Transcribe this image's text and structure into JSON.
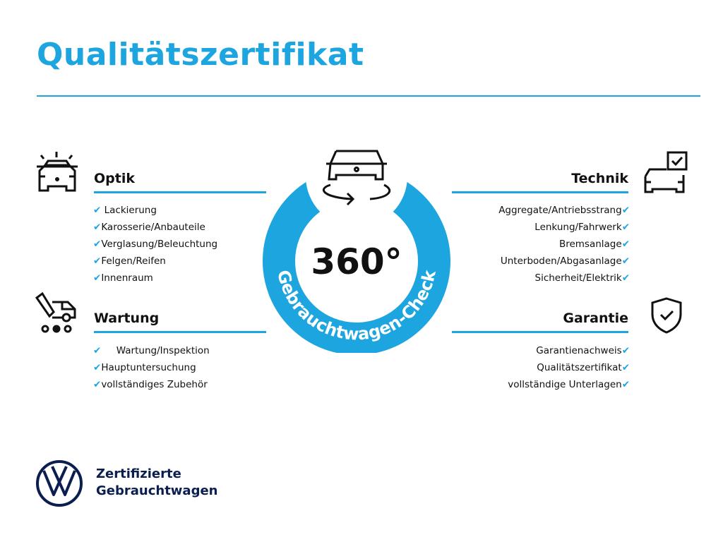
{
  "title": "Qualitätszertifikat",
  "badge": {
    "center": "360°",
    "arc_text": "Gebrauchtwagen-Check",
    "color": "#1da5df"
  },
  "sections": {
    "optik": {
      "title": "Optik",
      "items": [
        "Lackierung",
        "Karosserie/Anbauteile",
        "Verglasung/Beleuchtung",
        "Felgen/Reifen",
        "Innenraum"
      ]
    },
    "wartung": {
      "title": "Wartung",
      "items": [
        "Wartung/Inspektion",
        "Hauptuntersuchung",
        "vollständiges Zubehör"
      ]
    },
    "technik": {
      "title": "Technik",
      "items": [
        "Aggregate/Antriebsstrang",
        "Lenkung/Fahrwerk",
        "Bremsanlage",
        "Unterboden/Abgasanlage",
        "Sicherheit/Elektrik"
      ]
    },
    "garantie": {
      "title": "Garantie",
      "items": [
        "Garantienachweis",
        "Qualitätszertifikat",
        "vollständige Unterlagen"
      ]
    }
  },
  "check_mark": "✔",
  "footer": {
    "line1": "Zertifizierte",
    "line2": "Gebrauchtwagen"
  }
}
